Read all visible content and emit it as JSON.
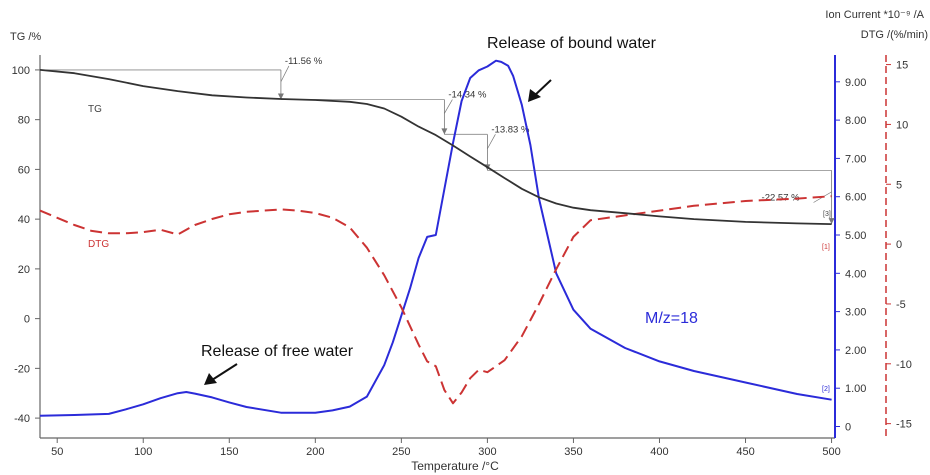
{
  "chart_data": {
    "type": "line",
    "xlabel": "Temperature /°C",
    "x_ticks": [
      50,
      100,
      150,
      200,
      250,
      300,
      350,
      400,
      450,
      500
    ],
    "xlim": [
      40,
      502
    ],
    "axes": {
      "tg": {
        "label": "TG /%",
        "ticks": [
          100,
          80,
          60,
          40,
          20,
          0,
          -20,
          -40
        ],
        "ylim": [
          -48,
          106
        ],
        "color": "#333333"
      },
      "ion": {
        "label": "Ion Current *10⁻⁹ /A",
        "ticks": [
          "9.00",
          "8.00",
          "7.00",
          "6.00",
          "5.00",
          "4.00",
          "3.00",
          "2.00",
          "1.00",
          "0"
        ],
        "ylim": [
          -0.3,
          9.7
        ],
        "color": "#2b2bd9"
      },
      "dtg": {
        "label": "DTG /(%/min)",
        "ticks": [
          15,
          10,
          5,
          0,
          -5,
          -10,
          -15
        ],
        "ylim": [
          -16.2,
          15.8
        ],
        "color": "#cc2222"
      }
    },
    "series": [
      {
        "name": "TG",
        "axis": "tg",
        "color": "#333333",
        "dash": false,
        "x": [
          40,
          60,
          80,
          100,
          120,
          140,
          160,
          180,
          200,
          220,
          230,
          240,
          250,
          260,
          270,
          280,
          290,
          300,
          310,
          320,
          330,
          340,
          350,
          360,
          380,
          400,
          420,
          450,
          480,
          500
        ],
        "y": [
          100,
          98.7,
          96.3,
          93.5,
          91.5,
          89.8,
          88.9,
          88.3,
          87.9,
          87.2,
          86.3,
          84.5,
          81.2,
          77.2,
          73.8,
          69.6,
          65.2,
          60.9,
          56.5,
          52.2,
          48.8,
          46.3,
          44.6,
          43.6,
          42.4,
          41.1,
          40.0,
          38.9,
          38.3,
          38.0
        ]
      },
      {
        "name": "DTG",
        "axis": "dtg",
        "color": "#cc3333",
        "dash": true,
        "x": [
          40,
          50,
          60,
          70,
          80,
          90,
          100,
          110,
          120,
          130,
          140,
          150,
          160,
          170,
          180,
          190,
          200,
          210,
          220,
          230,
          240,
          250,
          260,
          265,
          270,
          275,
          280,
          285,
          290,
          295,
          300,
          310,
          320,
          330,
          340,
          350,
          360,
          380,
          400,
          420,
          450,
          480,
          500
        ],
        "y": [
          2.8,
          2.2,
          1.6,
          1.1,
          0.9,
          0.9,
          1.0,
          1.2,
          0.8,
          1.6,
          2.1,
          2.5,
          2.7,
          2.8,
          2.9,
          2.8,
          2.6,
          2.2,
          1.4,
          -0.3,
          -2.6,
          -5.3,
          -8.4,
          -9.8,
          -10.2,
          -12.2,
          -13.3,
          -12.4,
          -11.2,
          -10.5,
          -10.7,
          -9.7,
          -7.7,
          -5.0,
          -2.1,
          0.6,
          2.0,
          2.4,
          2.8,
          3.2,
          3.6,
          3.8,
          4.0
        ]
      },
      {
        "name": "M/z=18",
        "axis": "ion",
        "color": "#2b2bd9",
        "dash": false,
        "x": [
          40,
          60,
          80,
          90,
          100,
          110,
          120,
          125,
          130,
          140,
          150,
          160,
          180,
          200,
          210,
          220,
          230,
          240,
          245,
          250,
          255,
          260,
          265,
          270,
          275,
          280,
          285,
          290,
          295,
          300,
          305,
          308,
          312,
          315,
          320,
          325,
          330,
          340,
          350,
          360,
          380,
          400,
          420,
          450,
          480,
          500
        ],
        "y": [
          0.28,
          0.3,
          0.33,
          0.45,
          0.58,
          0.74,
          0.87,
          0.9,
          0.86,
          0.76,
          0.63,
          0.51,
          0.36,
          0.36,
          0.42,
          0.52,
          0.78,
          1.6,
          2.2,
          2.9,
          3.6,
          4.4,
          4.95,
          5.0,
          6.2,
          7.4,
          8.5,
          9.1,
          9.3,
          9.4,
          9.55,
          9.52,
          9.42,
          9.15,
          8.4,
          7.35,
          5.95,
          4.0,
          3.05,
          2.55,
          2.05,
          1.7,
          1.45,
          1.15,
          0.85,
          0.7
        ]
      }
    ],
    "tg_steps": [
      {
        "text": "-11.56 %",
        "at_x": 180
      },
      {
        "text": "-14.34 %",
        "at_x": 275
      },
      {
        "text": "-13.83 %",
        "at_x": 300
      },
      {
        "text": "-22.57 %",
        "at_x": 500
      }
    ],
    "series_labels": {
      "tg": "TG",
      "dtg": "DTG",
      "mz": "M/z=18"
    },
    "markers": {
      "dtg": "[1]",
      "ion": "[2]",
      "tg": "[3]"
    },
    "annotations": {
      "bound_water": "Release of bound water",
      "free_water": "Release of free water"
    }
  }
}
